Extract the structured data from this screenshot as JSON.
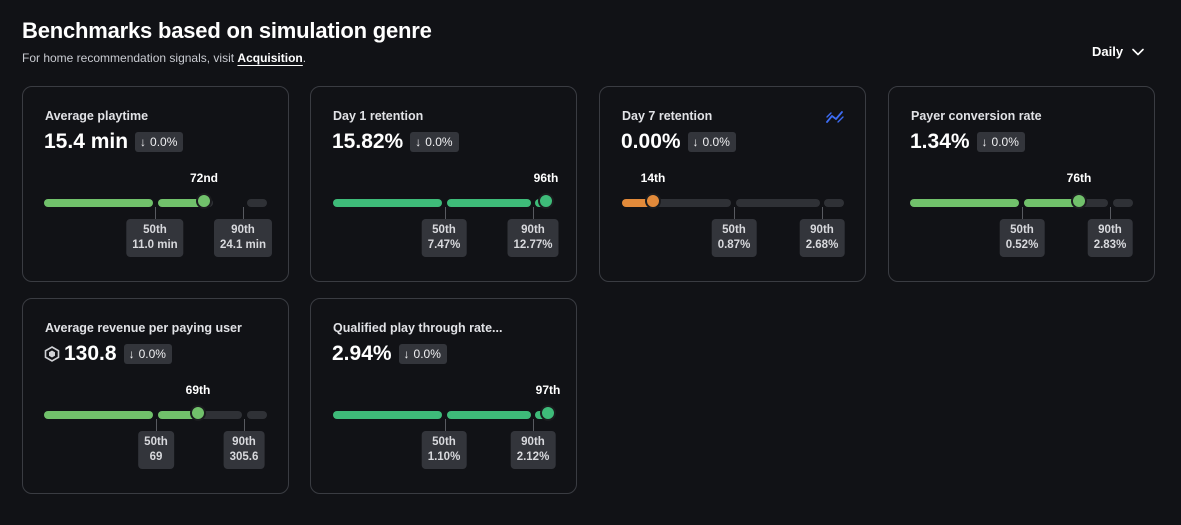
{
  "header": {
    "title": "Benchmarks based on simulation genre",
    "subtitle_prefix": "For home recommendation signals, visit ",
    "subtitle_link": "Acquisition",
    "subtitle_suffix": ".",
    "period": "Daily"
  },
  "colors": {
    "green": "#71c16b",
    "teal": "#3ebb79",
    "orange": "#e28a3a",
    "track": "#2f3136"
  },
  "cards": [
    {
      "label": "Average playtime",
      "value": "15.4 min",
      "delta": "0.0%",
      "percentile": "72nd",
      "bench50_title": "50th",
      "bench50_value": "11.0 min",
      "bench90_title": "90th",
      "bench90_value": "24.1 min"
    },
    {
      "label": "Day 1 retention",
      "value": "15.82%",
      "delta": "0.0%",
      "percentile": "96th",
      "bench50_title": "50th",
      "bench50_value": "7.47%",
      "bench90_title": "90th",
      "bench90_value": "12.77%"
    },
    {
      "label": "Day 7 retention",
      "value": "0.00%",
      "delta": "0.0%",
      "percentile": "14th",
      "bench50_title": "50th",
      "bench50_value": "0.87%",
      "bench90_title": "90th",
      "bench90_value": "2.68%"
    },
    {
      "label": "Payer conversion rate",
      "value": "1.34%",
      "delta": "0.0%",
      "percentile": "76th",
      "bench50_title": "50th",
      "bench50_value": "0.52%",
      "bench90_title": "90th",
      "bench90_value": "2.83%"
    },
    {
      "label": "Average revenue per paying user",
      "value": "130.8",
      "delta": "0.0%",
      "percentile": "69th",
      "bench50_title": "50th",
      "bench50_value": "69",
      "bench90_title": "90th",
      "bench90_value": "305.6"
    },
    {
      "label": "Qualified play through rate...",
      "value": "2.94%",
      "delta": "0.0%",
      "percentile": "97th",
      "bench50_title": "50th",
      "bench50_value": "1.10%",
      "bench90_title": "90th",
      "bench90_value": "2.12%"
    }
  ]
}
